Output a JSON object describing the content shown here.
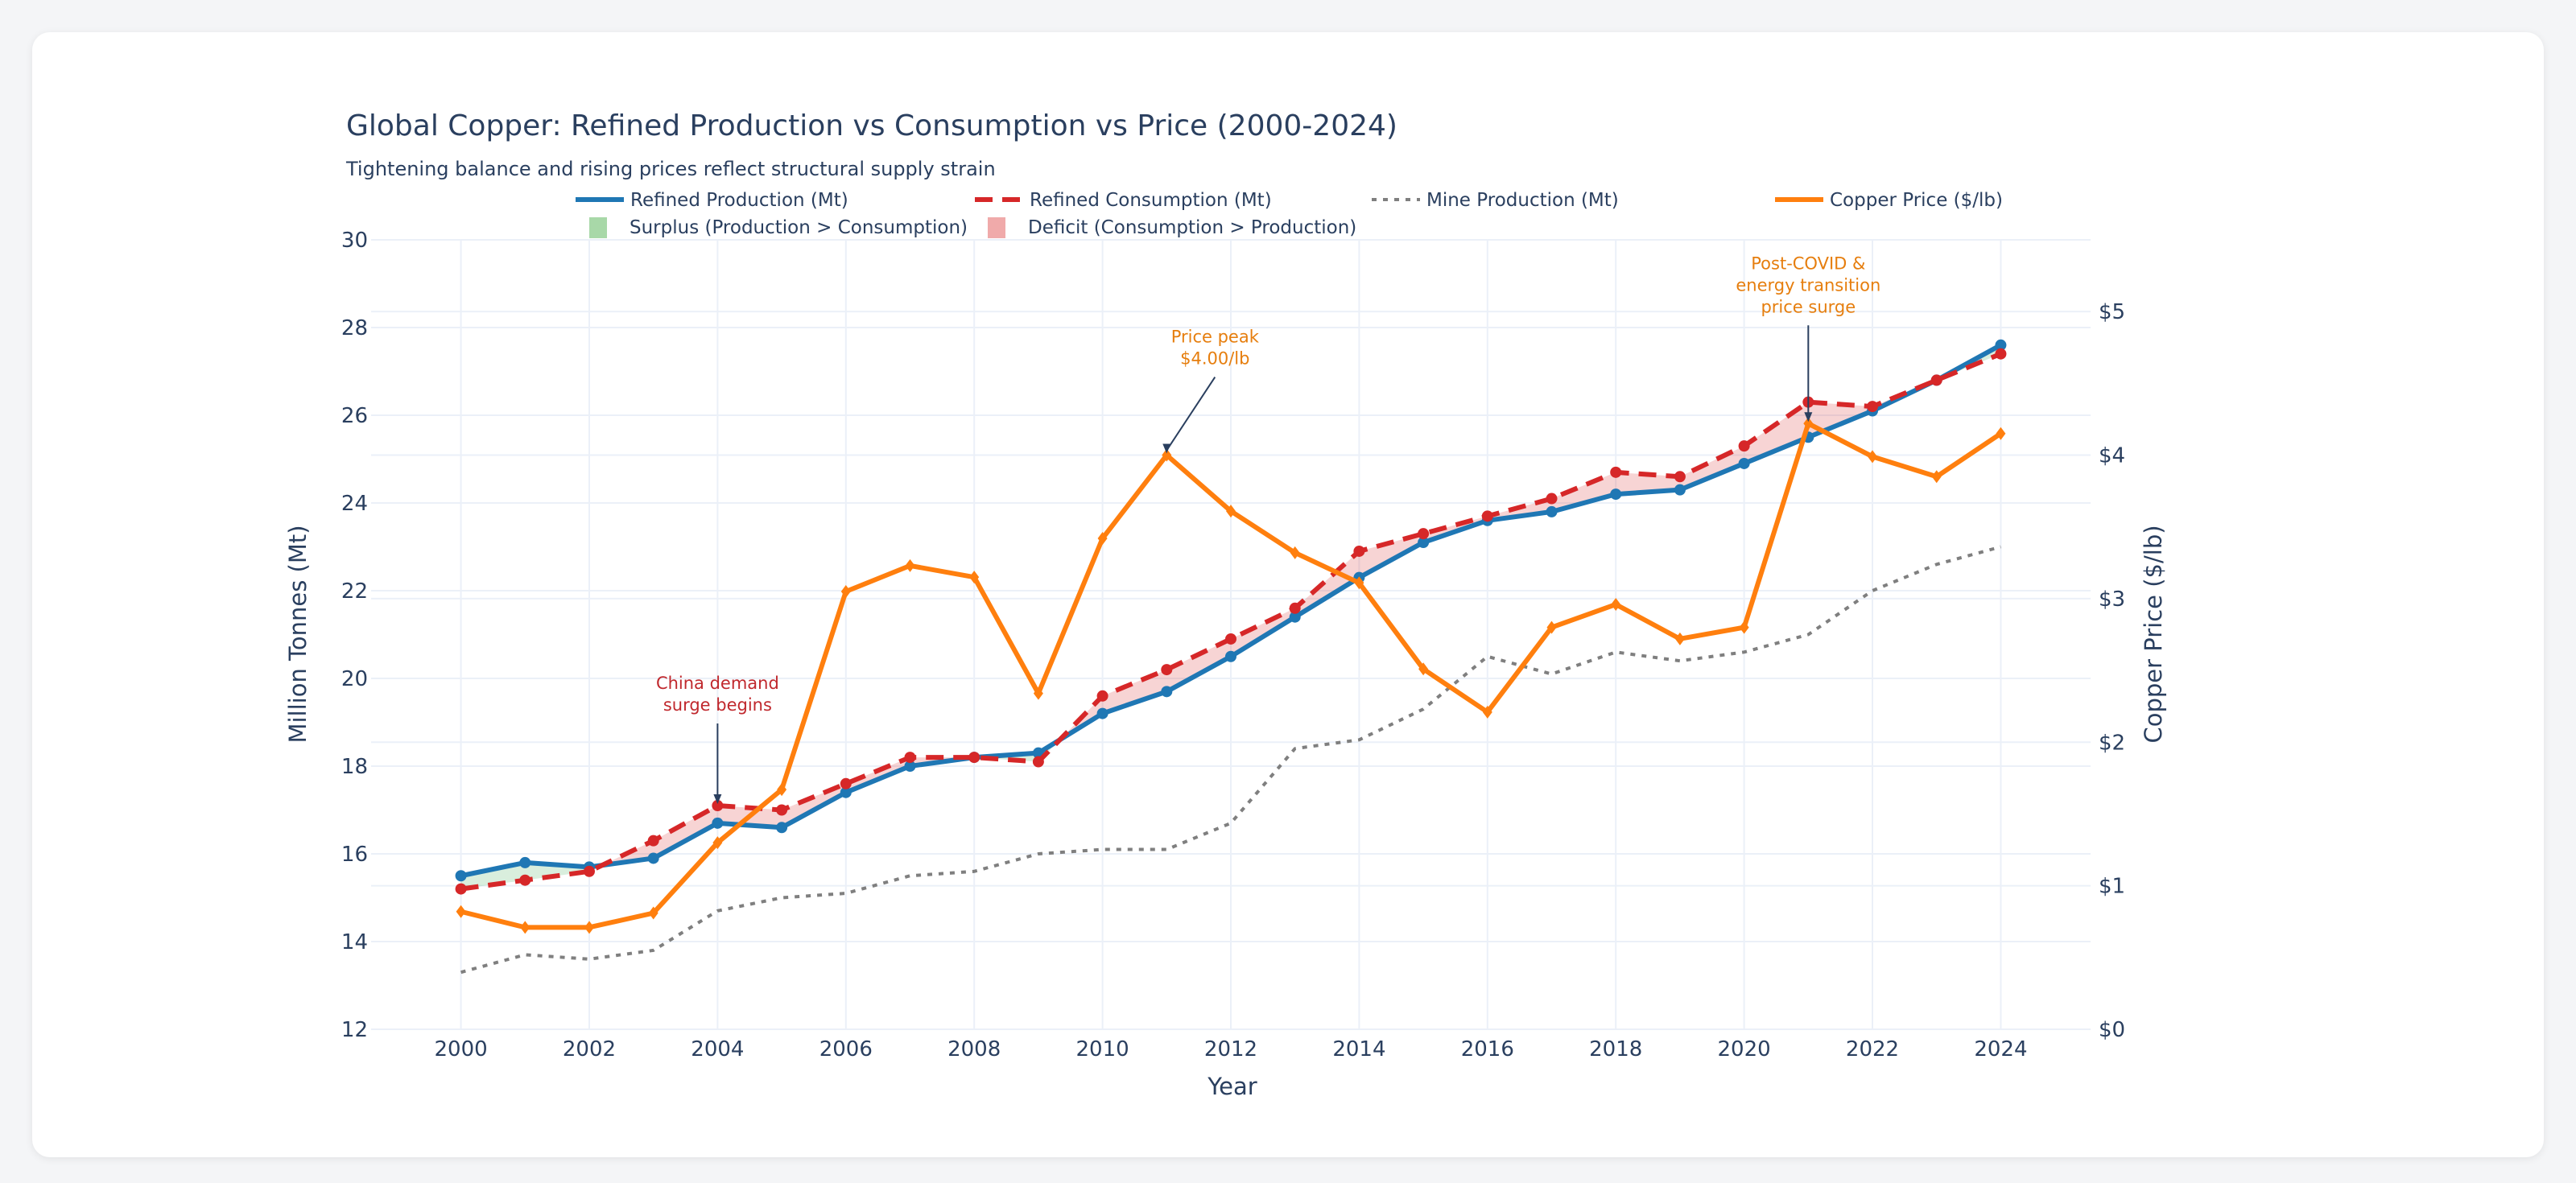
{
  "chart_data": {
    "type": "line",
    "title": "Global Copper: Refined Production vs Consumption vs Price (2000-2024)",
    "subtitle": "Tightening balance and rising prices reflect structural supply strain",
    "xlabel": "Year",
    "ylabel": "Million Tonnes (Mt)",
    "y2label": "Copper Price ($/lb)",
    "xlim": [
      1998.6,
      2025.4
    ],
    "ylim": [
      12,
      30
    ],
    "y2lim": [
      0,
      5.5
    ],
    "x_ticks": [
      2000,
      2002,
      2004,
      2006,
      2008,
      2010,
      2012,
      2014,
      2016,
      2018,
      2020,
      2022,
      2024
    ],
    "y_ticks": [
      12,
      14,
      16,
      18,
      20,
      22,
      24,
      26,
      28,
      30
    ],
    "y2_ticks": [
      "$0",
      "$1",
      "$2",
      "$3",
      "$4",
      "$5"
    ],
    "grid": true,
    "legend_placement": "top",
    "x": [
      2000,
      2001,
      2002,
      2003,
      2004,
      2005,
      2006,
      2007,
      2008,
      2009,
      2010,
      2011,
      2012,
      2013,
      2014,
      2015,
      2016,
      2017,
      2018,
      2019,
      2020,
      2021,
      2022,
      2023,
      2024
    ],
    "series": [
      {
        "name": "Refined Production (Mt)",
        "axis": "left",
        "color": "#1f77b4",
        "style": "solid-markers",
        "values": [
          15.5,
          15.8,
          15.7,
          15.9,
          16.7,
          16.6,
          17.4,
          18.0,
          18.2,
          18.3,
          19.2,
          19.7,
          20.5,
          21.4,
          22.3,
          23.1,
          23.6,
          23.8,
          24.2,
          24.3,
          24.9,
          25.5,
          26.1,
          26.8,
          27.6
        ]
      },
      {
        "name": "Refined Consumption (Mt)",
        "axis": "left",
        "color": "#d62728",
        "style": "dash-markers",
        "values": [
          15.2,
          15.4,
          15.6,
          16.3,
          17.1,
          17.0,
          17.6,
          18.2,
          18.2,
          18.1,
          19.6,
          20.2,
          20.9,
          21.6,
          22.9,
          23.3,
          23.7,
          24.1,
          24.7,
          24.6,
          25.3,
          26.3,
          26.2,
          26.8,
          27.4
        ]
      },
      {
        "name": "Mine Production (Mt)",
        "axis": "left",
        "color": "#7f7f7f",
        "style": "dot",
        "values": [
          13.3,
          13.7,
          13.6,
          13.8,
          14.7,
          15.0,
          15.1,
          15.5,
          15.6,
          16.0,
          16.1,
          16.1,
          16.7,
          18.4,
          18.6,
          19.3,
          20.5,
          20.1,
          20.6,
          20.4,
          20.6,
          21.0,
          22.0,
          22.6,
          23.0
        ]
      },
      {
        "name": "Copper Price ($/lb)",
        "axis": "right",
        "color": "#ff7f0e",
        "style": "solid-diamonds",
        "values": [
          0.82,
          0.71,
          0.71,
          0.81,
          1.3,
          1.67,
          3.05,
          3.23,
          3.15,
          2.34,
          3.42,
          4.0,
          3.61,
          3.32,
          3.11,
          2.51,
          2.21,
          2.8,
          2.96,
          2.72,
          2.8,
          4.22,
          3.99,
          3.85,
          4.15
        ]
      }
    ],
    "fills": [
      {
        "name": "Surplus (Production > Consumption)",
        "color": "#a8d8a8"
      },
      {
        "name": "Deficit (Consumption > Production)",
        "color": "#f0aaaa"
      }
    ],
    "annotations": [
      {
        "lines": [
          "China demand",
          "surge begins"
        ],
        "x": 2004,
        "y": 17.1,
        "axis": "left",
        "color": "#c0282d"
      },
      {
        "lines": [
          "Price peak",
          "$4.00/lb"
        ],
        "x": 2011,
        "y": 4.0,
        "axis": "right",
        "color": "#e67e0e"
      },
      {
        "lines": [
          "Post-COVID &",
          "energy transition",
          "price surge"
        ],
        "x": 2021,
        "y": 4.22,
        "axis": "right",
        "color": "#e67e0e"
      }
    ]
  }
}
